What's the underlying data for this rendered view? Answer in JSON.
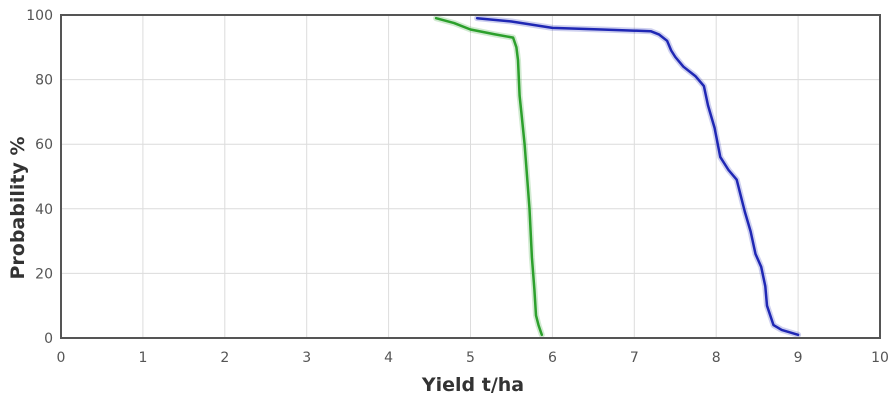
{
  "chart_data": {
    "type": "line",
    "title": "",
    "xlabel": "Yield t/ha",
    "ylabel": "Probability %",
    "xlim": [
      0,
      10
    ],
    "ylim": [
      0,
      100
    ],
    "x_ticks": [
      "0",
      "1",
      "2",
      "3",
      "4",
      "5",
      "6",
      "7",
      "8",
      "9",
      "10"
    ],
    "y_ticks": [
      "0",
      "20",
      "40",
      "60",
      "80",
      "100"
    ],
    "grid": true,
    "legend": "none",
    "series": [
      {
        "color": "#2ca02c",
        "points": [
          [
            4.58,
            99
          ],
          [
            4.8,
            97.5
          ],
          [
            5.0,
            95.5
          ],
          [
            5.3,
            94
          ],
          [
            5.52,
            93
          ],
          [
            5.56,
            90
          ],
          [
            5.58,
            86
          ],
          [
            5.6,
            75
          ],
          [
            5.62,
            70
          ],
          [
            5.66,
            60
          ],
          [
            5.7,
            47
          ],
          [
            5.72,
            40
          ],
          [
            5.75,
            25
          ],
          [
            5.78,
            15
          ],
          [
            5.8,
            7
          ],
          [
            5.83,
            4
          ],
          [
            5.87,
            1
          ]
        ]
      },
      {
        "color": "#1f27b4",
        "points": [
          [
            5.08,
            99
          ],
          [
            5.5,
            98
          ],
          [
            6.0,
            96
          ],
          [
            6.6,
            95.5
          ],
          [
            7.2,
            95
          ],
          [
            7.3,
            94
          ],
          [
            7.4,
            92
          ],
          [
            7.45,
            89
          ],
          [
            7.5,
            87
          ],
          [
            7.6,
            84
          ],
          [
            7.75,
            81
          ],
          [
            7.85,
            78
          ],
          [
            7.9,
            72
          ],
          [
            7.98,
            65
          ],
          [
            8.05,
            56
          ],
          [
            8.15,
            52
          ],
          [
            8.25,
            49
          ],
          [
            8.3,
            44
          ],
          [
            8.35,
            39
          ],
          [
            8.42,
            33
          ],
          [
            8.48,
            26
          ],
          [
            8.55,
            22
          ],
          [
            8.6,
            16
          ],
          [
            8.62,
            10
          ],
          [
            8.7,
            4
          ],
          [
            8.8,
            2.5
          ],
          [
            9.0,
            1
          ]
        ]
      }
    ]
  }
}
